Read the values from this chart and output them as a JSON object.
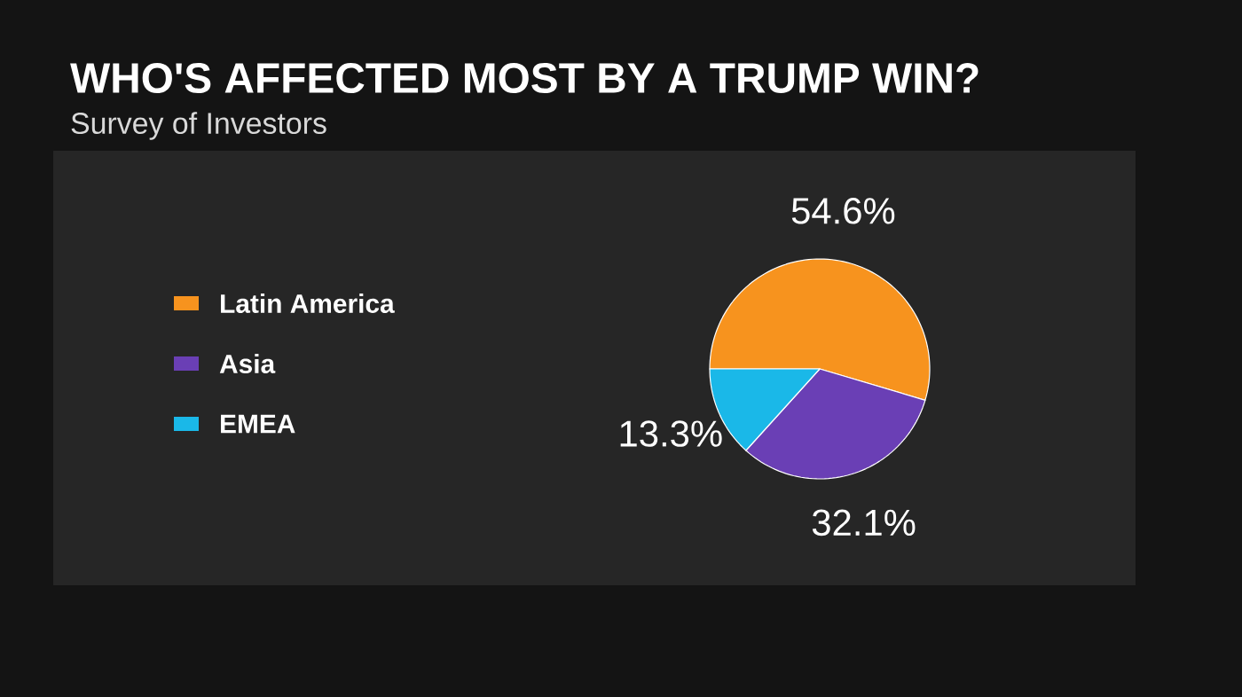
{
  "chart_data": {
    "type": "pie",
    "title": "WHO'S AFFECTED MOST BY A TRUMP WIN?",
    "subtitle": "Survey of Investors",
    "categories": [
      "Latin America",
      "Asia",
      "EMEA"
    ],
    "values": [
      54.6,
      32.1,
      13.3
    ],
    "colors": [
      "#f7931e",
      "#6a3fb5",
      "#1ab8e8"
    ],
    "value_labels": [
      "54.6%",
      "32.1%",
      "13.3%"
    ],
    "legend": "left"
  }
}
